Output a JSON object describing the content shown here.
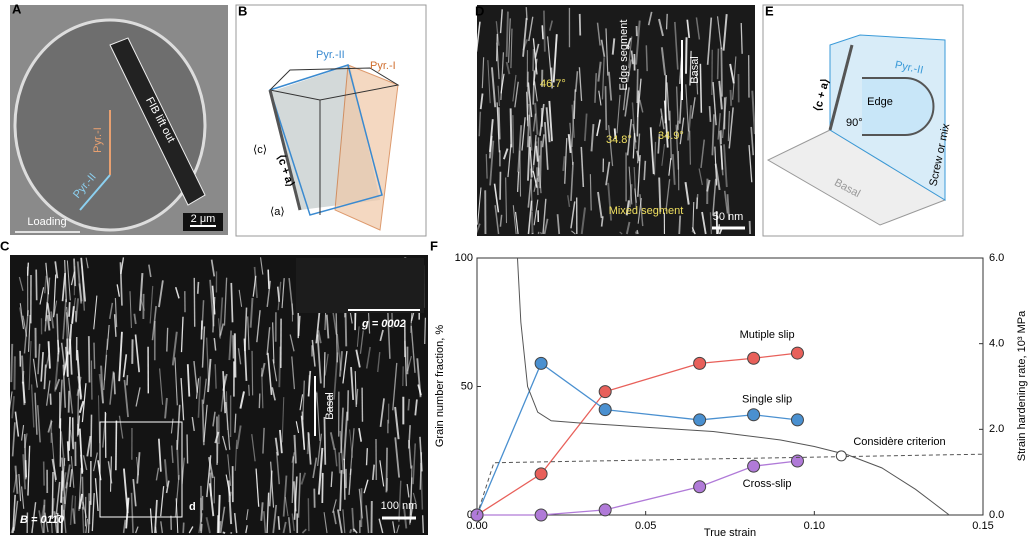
{
  "panels": {
    "A": {
      "label": "A",
      "fib": "FIB lift out",
      "pyr1": "Pyr.-I",
      "pyr2": "Pyr.-II",
      "loading": "Loading",
      "scale": "2 μm"
    },
    "B": {
      "label": "B",
      "pyr2": "Pyr.-II",
      "pyr1": "Pyr.-I",
      "c": "⟨c⟩",
      "ca": "⟨c + a⟩",
      "a": "⟨a⟩"
    },
    "C": {
      "label": "C",
      "g": "g = 0002",
      "basal": "Basal",
      "beam": "B = 011̄0",
      "d": "d",
      "scale": "100 nm"
    },
    "D": {
      "label": "D",
      "angle1": "46.7°",
      "edge": "Edge segment",
      "basal": "Basal",
      "angle2": "34.8°",
      "angle3": "34.9°",
      "mixed": "Mixed segment",
      "scale": "50 nm"
    },
    "E": {
      "label": "E",
      "pyr2": "Pyr.-II",
      "ca": "⟨c + a⟩",
      "edge": "Edge",
      "angle": "90°",
      "screw": "Screw or mix",
      "basal": "Basal"
    },
    "F": {
      "label": "F"
    }
  },
  "chart_data": {
    "type": "line",
    "x_label": "True strain",
    "y_label": "Grain number fraction, %",
    "y2_label": "Strain hardening rate, 10³ MPa",
    "xlim": [
      0,
      0.15
    ],
    "xticks": [
      {
        "value": 0,
        "label": "0.00"
      },
      0.05,
      {
        "value": 0.1,
        "label": "0.10"
      },
      0.15
    ],
    "ylim": [
      0,
      100
    ],
    "yticks": [
      0,
      50,
      100
    ],
    "y2lim": [
      0,
      6
    ],
    "y2ticks": [
      {
        "value": 0,
        "label": "0.0"
      },
      {
        "value": 2,
        "label": "2.0"
      },
      {
        "value": 4,
        "label": "4.0"
      },
      {
        "value": 6,
        "label": "6.0"
      }
    ],
    "series": [
      {
        "name": "Mutiple slip",
        "color": "#e8605a",
        "marker": true,
        "x": [
          0,
          0.019,
          0.038,
          0.066,
          0.082,
          0.095
        ],
        "values": [
          0,
          16,
          48,
          59,
          61,
          63
        ]
      },
      {
        "name": "Single slip",
        "color": "#4a90d0",
        "marker": true,
        "x": [
          0,
          0.019,
          0.038,
          0.066,
          0.082,
          0.095
        ],
        "values": [
          0,
          59,
          41,
          37,
          39,
          37
        ]
      },
      {
        "name": "Cross-slip",
        "color": "#b07ad8",
        "marker": true,
        "x": [
          0,
          0.019,
          0.038,
          0.066,
          0.082,
          0.095
        ],
        "values": [
          0,
          0,
          2,
          11,
          19,
          21
        ]
      },
      {
        "color": "#555555",
        "axis": "y2",
        "x": [
          0.012,
          0.013,
          0.015,
          0.018,
          0.022,
          0.03,
          0.04,
          0.05,
          0.06,
          0.07,
          0.08,
          0.09,
          0.1,
          0.11,
          0.12,
          0.13,
          0.135,
          0.14
        ],
        "values": [
          6,
          4.5,
          3,
          2.4,
          2.2,
          2.15,
          2.1,
          2.05,
          2,
          1.95,
          1.85,
          1.75,
          1.6,
          1.4,
          1.1,
          0.6,
          0.3,
          0
        ]
      },
      {
        "color": "#555555",
        "axis": "y2",
        "dashed": true,
        "x": [
          0,
          0.005,
          0.15
        ],
        "values": [
          0,
          1.22,
          1.42
        ]
      }
    ],
    "considere": {
      "label": "Considère criterion",
      "x": 0.108,
      "y": 1.38
    }
  }
}
